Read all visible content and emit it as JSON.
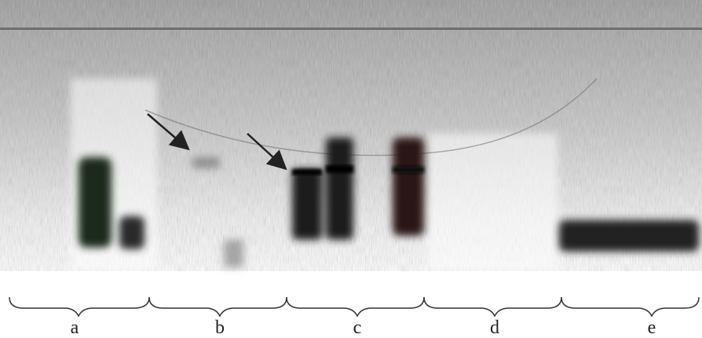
{
  "lane_labels": [
    "a",
    "b",
    "c",
    "d",
    "e"
  ]
}
